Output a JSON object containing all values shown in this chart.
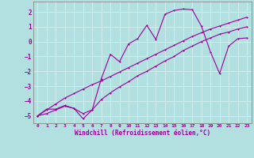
{
  "xlabel": "Windchill (Refroidissement éolien,°C)",
  "bg_color": "#b2dfdf",
  "grid_color": "#d0eeee",
  "line_color": "#990099",
  "spine_color": "#888888",
  "xlim": [
    -0.5,
    23.5
  ],
  "ylim": [
    -5.5,
    2.7
  ],
  "xticks": [
    0,
    1,
    2,
    3,
    4,
    5,
    6,
    7,
    8,
    9,
    10,
    11,
    12,
    13,
    14,
    15,
    16,
    17,
    18,
    19,
    20,
    21,
    22,
    23
  ],
  "yticks": [
    -5,
    -4,
    -3,
    -2,
    -1,
    0,
    1,
    2
  ],
  "line1_x": [
    0,
    1,
    2,
    3,
    4,
    5,
    6,
    7,
    8,
    9,
    10,
    11,
    12,
    13,
    14,
    15,
    16,
    17,
    18,
    19,
    20,
    21,
    22,
    23
  ],
  "line1_y": [
    -5.0,
    -4.55,
    -4.55,
    -4.3,
    -4.5,
    -4.85,
    -4.6,
    -3.9,
    -3.45,
    -3.05,
    -2.7,
    -2.3,
    -2.0,
    -1.65,
    -1.3,
    -1.0,
    -0.6,
    -0.3,
    0.0,
    0.25,
    0.5,
    0.65,
    0.85,
    1.0
  ],
  "line2_x": [
    0,
    1,
    2,
    3,
    4,
    5,
    6,
    7,
    8,
    9,
    10,
    11,
    12,
    13,
    14,
    15,
    16,
    17,
    18,
    19,
    20,
    21,
    22,
    23
  ],
  "line2_y": [
    -5.0,
    -4.6,
    -4.2,
    -3.8,
    -3.5,
    -3.2,
    -2.9,
    -2.65,
    -2.35,
    -2.05,
    -1.75,
    -1.45,
    -1.15,
    -0.85,
    -0.55,
    -0.25,
    0.05,
    0.35,
    0.6,
    0.85,
    1.05,
    1.25,
    1.45,
    1.65
  ],
  "line3_x": [
    0,
    1,
    2,
    3,
    4,
    5,
    6,
    7,
    8,
    9,
    10,
    11,
    12,
    13,
    14,
    15,
    16,
    17,
    18,
    19,
    20,
    21,
    22,
    23
  ],
  "line3_y": [
    -5.0,
    -4.85,
    -4.6,
    -4.35,
    -4.5,
    -5.2,
    -4.6,
    -2.5,
    -0.85,
    -1.35,
    -0.15,
    0.2,
    1.1,
    0.15,
    1.85,
    2.1,
    2.2,
    2.15,
    1.05,
    -0.7,
    -2.15,
    -0.3,
    0.2,
    0.25
  ]
}
